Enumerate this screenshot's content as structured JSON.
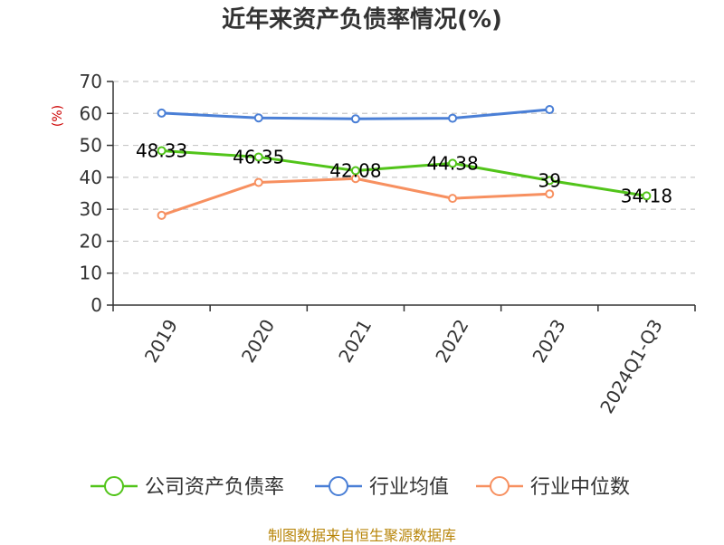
{
  "chart_data": {
    "type": "line",
    "title": "近年来资产负债率情况(%)",
    "ylabel": "(%)",
    "ylim": [
      0,
      70
    ],
    "yticks": [
      0,
      10,
      20,
      30,
      40,
      50,
      60,
      70
    ],
    "grid": true,
    "legend_position": "bottom",
    "categories": [
      "2019",
      "2020",
      "2021",
      "2022",
      "2023",
      "2024Q1-Q3"
    ],
    "series": [
      {
        "name": "公司资产负债率",
        "color": "#52c41a",
        "values": [
          48.33,
          46.35,
          42.08,
          44.38,
          39,
          34.18
        ],
        "labels": [
          "48.33",
          "46.35",
          "42.08",
          "44.38",
          "39",
          "34.18"
        ]
      },
      {
        "name": "行业均值",
        "color": "#4a7fd6",
        "values": [
          60.1,
          58.6,
          58.3,
          58.5,
          61.2,
          null
        ]
      },
      {
        "name": "行业中位数",
        "color": "#f79060",
        "values": [
          28.1,
          38.4,
          39.6,
          33.4,
          34.8,
          null
        ]
      }
    ]
  },
  "ylabel_color": "#cc0000",
  "source_note": "制图数据来自恒生聚源数据库"
}
